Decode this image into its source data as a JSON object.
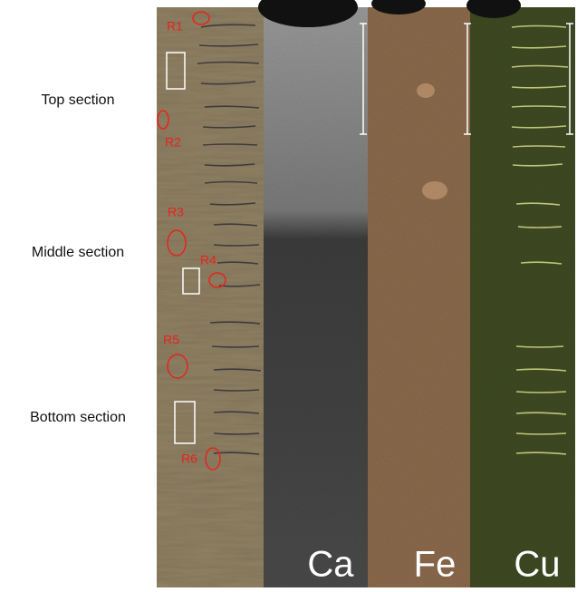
{
  "sections": [
    "Top section",
    "Middle section",
    "Bottom section"
  ],
  "regions": [
    "R1",
    "R2",
    "R3",
    "R4",
    "R5",
    "R6"
  ],
  "panels": [
    "Ca",
    "Fe",
    "Cu"
  ]
}
